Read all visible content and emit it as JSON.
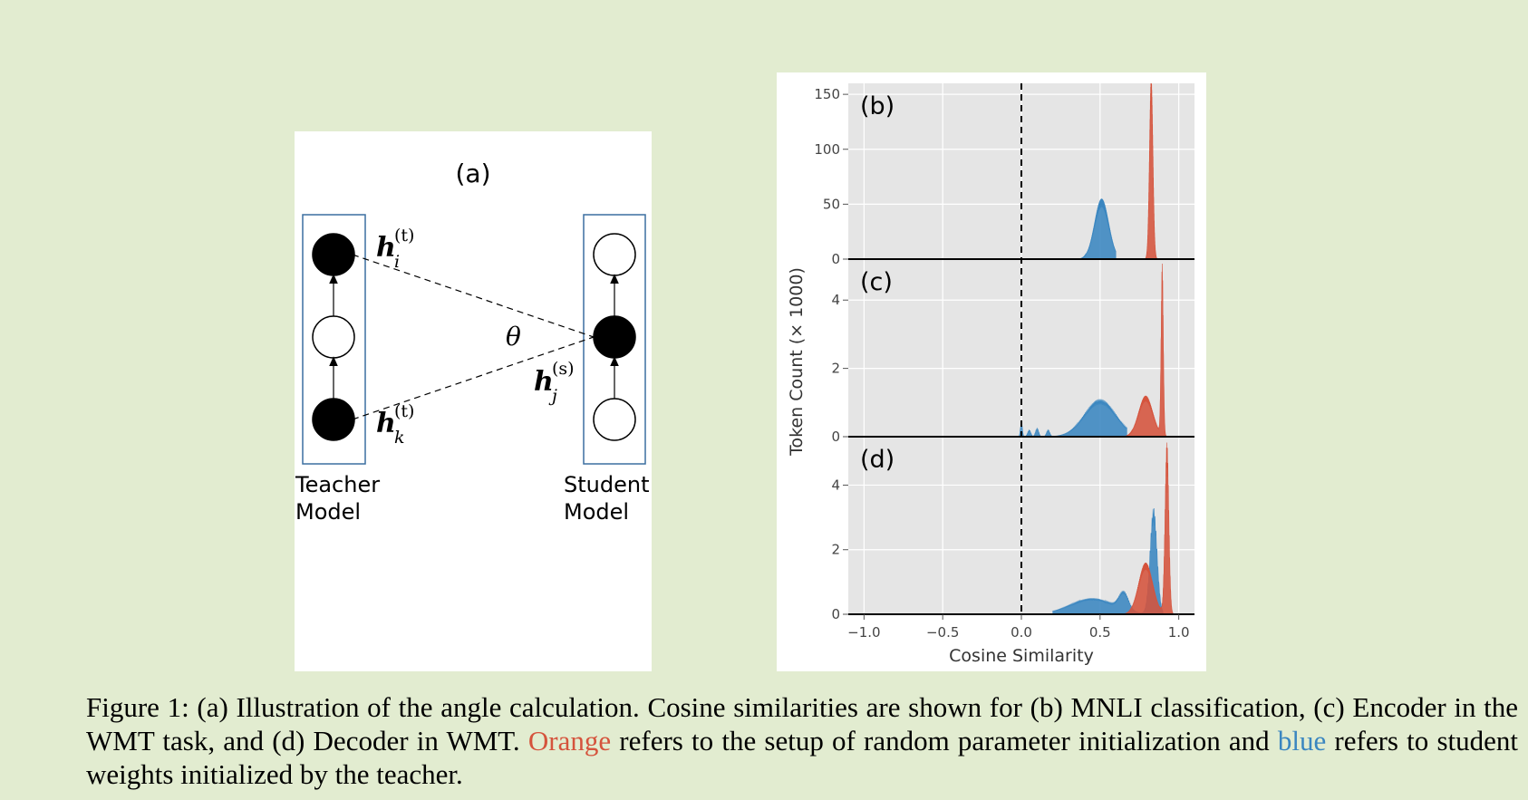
{
  "panel_a": {
    "label": "(a)",
    "teacher_line1": "Teacher",
    "teacher_line2": "Model",
    "student_line1": "Student",
    "student_line2": "Model",
    "theta": "θ",
    "h_i_base": "h",
    "h_i_sub": "i",
    "h_i_sup": "(t)",
    "h_k_base": "h",
    "h_k_sub": "k",
    "h_k_sup": "(t)",
    "h_j_base": "h",
    "h_j_sub": "j",
    "h_j_sup": "(s)"
  },
  "chart_data": {
    "type": "area",
    "xlabel": "Cosine Similarity",
    "ylabel": "Token Count (× 1000)",
    "x_ticks": [
      "−1.0",
      "−0.5",
      "0.0",
      "0.5",
      "1.0"
    ],
    "x_tick_values": [
      -1.0,
      -0.5,
      0.0,
      0.5,
      1.0
    ],
    "xlim": [
      -1.1,
      1.1
    ],
    "vline_x": 0.0,
    "colors": {
      "orange": "#d5533c",
      "blue": "#3a86c0",
      "bg": "#e5e5e5"
    },
    "panels": [
      {
        "label": "(b)",
        "ylim": [
          0,
          160
        ],
        "yticks": [
          0,
          50,
          100,
          150
        ],
        "series": [
          {
            "color": "blue",
            "peaks": [
              {
                "mu": 0.51,
                "sigma": 0.045,
                "amp": 55
              }
            ],
            "xmin": 0.37,
            "xmax": 0.6
          },
          {
            "color": "orange",
            "peaks": [
              {
                "mu": 0.825,
                "sigma": 0.011,
                "amp": 165
              }
            ],
            "xmin": 0.78,
            "xmax": 0.9
          }
        ]
      },
      {
        "label": "(c)",
        "ylim": [
          0,
          5.2
        ],
        "yticks": [
          0,
          2,
          4
        ],
        "series": [
          {
            "color": "blue",
            "peaks": [
              {
                "mu": 0.5,
                "sigma": 0.1,
                "amp": 1.1
              },
              {
                "mu": 0.0,
                "sigma": 0.006,
                "amp": 0.45
              },
              {
                "mu": 0.05,
                "sigma": 0.01,
                "amp": 0.2
              },
              {
                "mu": 0.1,
                "sigma": 0.01,
                "amp": 0.25
              },
              {
                "mu": 0.17,
                "sigma": 0.01,
                "amp": 0.2
              }
            ],
            "xmin": -0.02,
            "xmax": 0.67
          },
          {
            "color": "orange",
            "peaks": [
              {
                "mu": 0.79,
                "sigma": 0.045,
                "amp": 1.2
              },
              {
                "mu": 0.895,
                "sigma": 0.007,
                "amp": 5.0
              }
            ],
            "xmin": 0.65,
            "xmax": 0.95
          }
        ]
      },
      {
        "label": "(d)",
        "ylim": [
          0,
          5.5
        ],
        "yticks": [
          0,
          2,
          4
        ],
        "series": [
          {
            "color": "blue",
            "peaks": [
              {
                "mu": 0.45,
                "sigma": 0.14,
                "amp": 0.5
              },
              {
                "mu": 0.65,
                "sigma": 0.03,
                "amp": 0.55
              },
              {
                "mu": 0.84,
                "sigma": 0.022,
                "amp": 3.3
              }
            ],
            "xmin": 0.2,
            "xmax": 0.9
          },
          {
            "color": "orange",
            "peaks": [
              {
                "mu": 0.79,
                "sigma": 0.045,
                "amp": 1.6
              },
              {
                "mu": 0.925,
                "sigma": 0.012,
                "amp": 5.3
              }
            ],
            "xmin": 0.64,
            "xmax": 0.97
          }
        ]
      }
    ]
  },
  "caption": {
    "part1": "Figure 1: (a) Illustration of the angle calculation.  Cosine similarities are shown for (b) MNLI classification, (c) Encoder in the WMT task, and (d) Decoder in WMT. ",
    "orange_word": "Orange",
    "part2": " refers to the setup of random parameter initialization and ",
    "blue_word": "blue",
    "part3": " refers to student weights initialized by the teacher."
  }
}
